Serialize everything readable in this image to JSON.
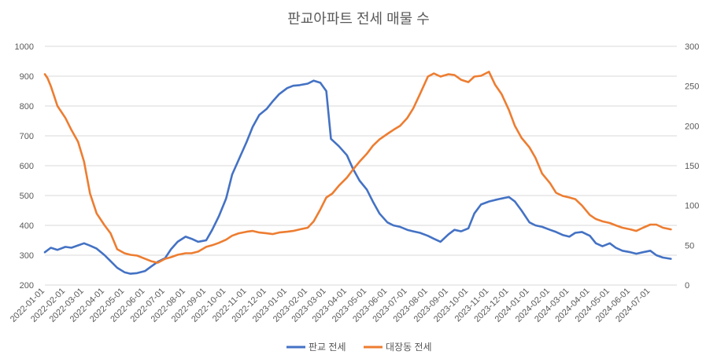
{
  "chart_data": {
    "type": "line",
    "title": "판교아파트 전세 매물 수",
    "grid": true,
    "legend_position": "bottom",
    "x_ticks": [
      "2022-01-01",
      "2022-02-01",
      "2022-03-01",
      "2022-04-01",
      "2022-05-01",
      "2022-06-01",
      "2022-07-01",
      "2022-08-01",
      "2022-09-01",
      "2022-10-01",
      "2022-11-01",
      "2022-12-01",
      "2023-01-01",
      "2023-02-01",
      "2023-03-01",
      "2023-04-01",
      "2023-05-01",
      "2023-06-01",
      "2023-07-01",
      "2023-08-01",
      "2023-09-01",
      "2023-10-01",
      "2023-11-01",
      "2023-12-01",
      "2024-01-01",
      "2024-02-01",
      "2024-03-01",
      "2024-04-01",
      "2024-05-01",
      "2024-06-01",
      "2024-07-01"
    ],
    "x_range": [
      "2022-01-01",
      "2024-08-10"
    ],
    "y_left": {
      "range": [
        200,
        1000
      ],
      "ticks": [
        200,
        300,
        400,
        500,
        600,
        700,
        800,
        900,
        1000
      ]
    },
    "y_right": {
      "range": [
        0,
        300
      ],
      "ticks": [
        0,
        50,
        100,
        150,
        200,
        250,
        300
      ]
    },
    "series": [
      {
        "name": "판교 전세",
        "axis": "left",
        "color": "#4472C4",
        "points": [
          [
            "2022-01-01",
            310
          ],
          [
            "2022-01-10",
            325
          ],
          [
            "2022-01-20",
            318
          ],
          [
            "2022-02-01",
            328
          ],
          [
            "2022-02-10",
            325
          ],
          [
            "2022-02-20",
            333
          ],
          [
            "2022-03-01",
            340
          ],
          [
            "2022-03-10",
            332
          ],
          [
            "2022-03-20",
            322
          ],
          [
            "2022-04-01",
            300
          ],
          [
            "2022-04-10",
            280
          ],
          [
            "2022-04-20",
            258
          ],
          [
            "2022-05-01",
            243
          ],
          [
            "2022-05-10",
            238
          ],
          [
            "2022-05-20",
            240
          ],
          [
            "2022-06-01",
            247
          ],
          [
            "2022-06-10",
            262
          ],
          [
            "2022-06-20",
            278
          ],
          [
            "2022-07-01",
            290
          ],
          [
            "2022-07-10",
            320
          ],
          [
            "2022-07-20",
            345
          ],
          [
            "2022-08-01",
            362
          ],
          [
            "2022-08-10",
            355
          ],
          [
            "2022-08-20",
            345
          ],
          [
            "2022-09-01",
            350
          ],
          [
            "2022-09-10",
            385
          ],
          [
            "2022-09-20",
            430
          ],
          [
            "2022-10-01",
            490
          ],
          [
            "2022-10-10",
            570
          ],
          [
            "2022-10-20",
            620
          ],
          [
            "2022-11-01",
            680
          ],
          [
            "2022-11-10",
            730
          ],
          [
            "2022-11-20",
            770
          ],
          [
            "2022-12-01",
            790
          ],
          [
            "2022-12-10",
            815
          ],
          [
            "2022-12-20",
            840
          ],
          [
            "2023-01-01",
            860
          ],
          [
            "2023-01-10",
            868
          ],
          [
            "2023-01-20",
            870
          ],
          [
            "2023-02-01",
            875
          ],
          [
            "2023-02-10",
            885
          ],
          [
            "2023-02-20",
            878
          ],
          [
            "2023-03-01",
            850
          ],
          [
            "2023-03-08",
            690
          ],
          [
            "2023-03-20",
            665
          ],
          [
            "2023-04-01",
            635
          ],
          [
            "2023-04-10",
            590
          ],
          [
            "2023-04-20",
            550
          ],
          [
            "2023-05-01",
            520
          ],
          [
            "2023-05-10",
            480
          ],
          [
            "2023-05-20",
            440
          ],
          [
            "2023-06-01",
            410
          ],
          [
            "2023-06-10",
            400
          ],
          [
            "2023-06-20",
            395
          ],
          [
            "2023-07-01",
            385
          ],
          [
            "2023-07-10",
            380
          ],
          [
            "2023-07-20",
            375
          ],
          [
            "2023-08-01",
            365
          ],
          [
            "2023-08-10",
            355
          ],
          [
            "2023-08-20",
            345
          ],
          [
            "2023-09-01",
            370
          ],
          [
            "2023-09-10",
            385
          ],
          [
            "2023-09-20",
            380
          ],
          [
            "2023-10-01",
            390
          ],
          [
            "2023-10-10",
            440
          ],
          [
            "2023-10-20",
            470
          ],
          [
            "2023-11-01",
            480
          ],
          [
            "2023-11-10",
            485
          ],
          [
            "2023-11-20",
            490
          ],
          [
            "2023-12-01",
            495
          ],
          [
            "2023-12-10",
            480
          ],
          [
            "2023-12-20",
            450
          ],
          [
            "2024-01-01",
            410
          ],
          [
            "2024-01-10",
            400
          ],
          [
            "2024-01-20",
            395
          ],
          [
            "2024-02-01",
            385
          ],
          [
            "2024-02-10",
            378
          ],
          [
            "2024-02-20",
            368
          ],
          [
            "2024-03-01",
            362
          ],
          [
            "2024-03-10",
            375
          ],
          [
            "2024-03-20",
            378
          ],
          [
            "2024-04-01",
            365
          ],
          [
            "2024-04-10",
            340
          ],
          [
            "2024-04-20",
            330
          ],
          [
            "2024-05-01",
            340
          ],
          [
            "2024-05-10",
            325
          ],
          [
            "2024-05-20",
            315
          ],
          [
            "2024-06-01",
            310
          ],
          [
            "2024-06-10",
            305
          ],
          [
            "2024-06-20",
            310
          ],
          [
            "2024-07-01",
            315
          ],
          [
            "2024-07-10",
            300
          ],
          [
            "2024-07-20",
            292
          ],
          [
            "2024-08-01",
            288
          ]
        ]
      },
      {
        "name": "대장동 전세",
        "axis": "right",
        "color": "#ED7D31",
        "points": [
          [
            "2022-01-01",
            265
          ],
          [
            "2022-01-05",
            260
          ],
          [
            "2022-01-10",
            250
          ],
          [
            "2022-01-20",
            225
          ],
          [
            "2022-02-01",
            210
          ],
          [
            "2022-02-10",
            195
          ],
          [
            "2022-02-20",
            180
          ],
          [
            "2022-03-01",
            155
          ],
          [
            "2022-03-10",
            115
          ],
          [
            "2022-03-20",
            90
          ],
          [
            "2022-04-01",
            75
          ],
          [
            "2022-04-10",
            65
          ],
          [
            "2022-04-20",
            45
          ],
          [
            "2022-05-01",
            40
          ],
          [
            "2022-05-10",
            38
          ],
          [
            "2022-05-20",
            37
          ],
          [
            "2022-06-01",
            33
          ],
          [
            "2022-06-10",
            30
          ],
          [
            "2022-06-20",
            28
          ],
          [
            "2022-07-01",
            33
          ],
          [
            "2022-07-10",
            35
          ],
          [
            "2022-07-20",
            38
          ],
          [
            "2022-08-01",
            40
          ],
          [
            "2022-08-10",
            40
          ],
          [
            "2022-08-20",
            42
          ],
          [
            "2022-09-01",
            48
          ],
          [
            "2022-09-10",
            50
          ],
          [
            "2022-09-20",
            53
          ],
          [
            "2022-10-01",
            57
          ],
          [
            "2022-10-10",
            62
          ],
          [
            "2022-10-20",
            65
          ],
          [
            "2022-11-01",
            67
          ],
          [
            "2022-11-10",
            68
          ],
          [
            "2022-11-20",
            66
          ],
          [
            "2022-12-01",
            65
          ],
          [
            "2022-12-10",
            64
          ],
          [
            "2022-12-20",
            66
          ],
          [
            "2023-01-01",
            67
          ],
          [
            "2023-01-10",
            68
          ],
          [
            "2023-01-20",
            70
          ],
          [
            "2023-02-01",
            72
          ],
          [
            "2023-02-10",
            80
          ],
          [
            "2023-02-20",
            95
          ],
          [
            "2023-03-01",
            110
          ],
          [
            "2023-03-10",
            115
          ],
          [
            "2023-03-20",
            125
          ],
          [
            "2023-04-01",
            135
          ],
          [
            "2023-04-10",
            145
          ],
          [
            "2023-04-20",
            155
          ],
          [
            "2023-05-01",
            165
          ],
          [
            "2023-05-10",
            175
          ],
          [
            "2023-05-20",
            183
          ],
          [
            "2023-06-01",
            190
          ],
          [
            "2023-06-10",
            195
          ],
          [
            "2023-06-20",
            200
          ],
          [
            "2023-07-01",
            210
          ],
          [
            "2023-07-10",
            222
          ],
          [
            "2023-07-20",
            240
          ],
          [
            "2023-08-01",
            262
          ],
          [
            "2023-08-10",
            266
          ],
          [
            "2023-08-20",
            262
          ],
          [
            "2023-09-01",
            265
          ],
          [
            "2023-09-10",
            264
          ],
          [
            "2023-09-20",
            258
          ],
          [
            "2023-10-01",
            255
          ],
          [
            "2023-10-10",
            262
          ],
          [
            "2023-10-20",
            263
          ],
          [
            "2023-11-01",
            268
          ],
          [
            "2023-11-10",
            252
          ],
          [
            "2023-11-20",
            240
          ],
          [
            "2023-12-01",
            220
          ],
          [
            "2023-12-10",
            200
          ],
          [
            "2023-12-20",
            185
          ],
          [
            "2024-01-01",
            173
          ],
          [
            "2024-01-10",
            160
          ],
          [
            "2024-01-20",
            140
          ],
          [
            "2024-02-01",
            128
          ],
          [
            "2024-02-10",
            116
          ],
          [
            "2024-02-20",
            112
          ],
          [
            "2024-03-01",
            110
          ],
          [
            "2024-03-10",
            108
          ],
          [
            "2024-03-20",
            100
          ],
          [
            "2024-04-01",
            88
          ],
          [
            "2024-04-10",
            83
          ],
          [
            "2024-04-20",
            80
          ],
          [
            "2024-05-01",
            78
          ],
          [
            "2024-05-10",
            75
          ],
          [
            "2024-05-20",
            72
          ],
          [
            "2024-06-01",
            70
          ],
          [
            "2024-06-10",
            68
          ],
          [
            "2024-06-20",
            72
          ],
          [
            "2024-07-01",
            76
          ],
          [
            "2024-07-10",
            76
          ],
          [
            "2024-07-20",
            72
          ],
          [
            "2024-08-01",
            70
          ]
        ]
      }
    ]
  }
}
